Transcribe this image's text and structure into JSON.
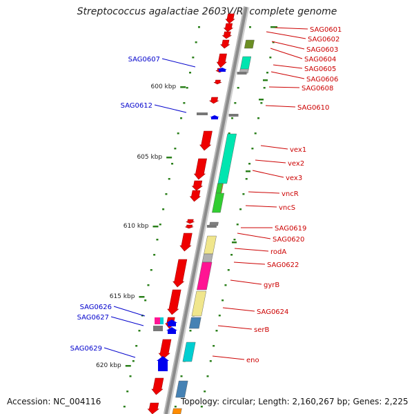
{
  "title": "Streptococcus agalactiae 2603V/R, complete genome",
  "accession": "Accession: NC_004116",
  "topology": "Topology: circular; Length: 2,160,267 bp; Genes: 2,225",
  "colors": {
    "backbone": "#8c8c8c",
    "label_forward": "#cc0000",
    "label_reverse": "#0000cc",
    "tick": "#2a7f1a",
    "gene_forward": "#ee0000",
    "gene_reverse": "#0000ee"
  },
  "scale_labels": [
    "600 kbp",
    "605 kbp",
    "610 kbp",
    "615 kbp",
    "620 kbp"
  ],
  "gene_labels_forward": [
    "SAG0601",
    "SAG0602",
    "SAG0603",
    "SAG0604",
    "SAG0605",
    "SAG0606",
    "SAG0608",
    "SAG0610",
    "vex1",
    "vex2",
    "vex3",
    "vncR",
    "vncS",
    "SAG0619",
    "SAG0620",
    "rodA",
    "SAG0622",
    "gyrB",
    "SAG0624",
    "serB",
    "eno"
  ],
  "gene_labels_reverse": [
    "SAG0607",
    "SAG0612",
    "SAG0626",
    "SAG0627",
    "SAG0629"
  ],
  "functional_colors": [
    "#6b8e23",
    "#00e5b0",
    "#32cd32",
    "#ff8c00",
    "#f0e68c",
    "#ff1493",
    "#4682b4",
    "#00ced1",
    "#ff69b4",
    "#b0b0b0"
  ]
}
